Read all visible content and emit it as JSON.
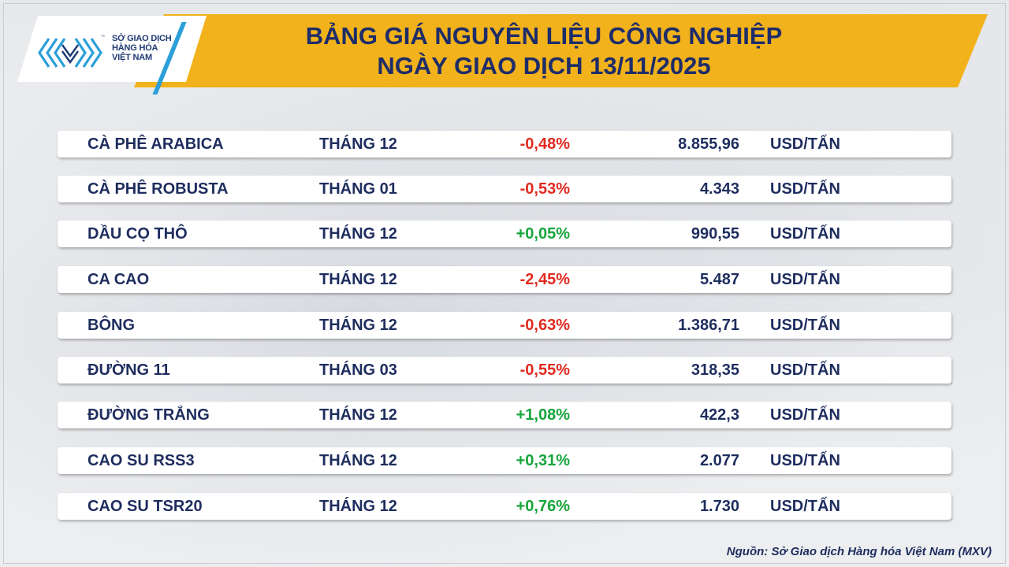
{
  "logo": {
    "line1": "SỞ GIAO DỊCH",
    "line2": "HÀNG HÓA",
    "line3": "VIỆT NAM",
    "trademark": "™",
    "icon": "mxv-chevron-logo-icon",
    "colors": {
      "navy": "#1f3a73",
      "blue": "#2a9fd8"
    }
  },
  "header": {
    "title_line1": "BẢNG GIÁ NGUYÊN LIỆU CÔNG NGHIỆP",
    "title_line2": "NGÀY GIAO DỊCH 13/11/2025",
    "banner_color": "#f2b21b"
  },
  "rows": [
    {
      "name": "CÀ PHÊ ARABICA",
      "month": "THÁNG 12",
      "change": "-0,48%",
      "direction": "down",
      "price": "8.855,96",
      "unit": "USD/TẤN"
    },
    {
      "name": "CÀ PHÊ ROBUSTA",
      "month": "THÁNG 01",
      "change": "-0,53%",
      "direction": "down",
      "price": "4.343",
      "unit": "USD/TẤN"
    },
    {
      "name": "DẦU CỌ THÔ",
      "month": "THÁNG 12",
      "change": "+0,05%",
      "direction": "up",
      "price": "990,55",
      "unit": "USD/TẤN"
    },
    {
      "name": "CA CAO",
      "month": "THÁNG 12",
      "change": "-2,45%",
      "direction": "down",
      "price": "5.487",
      "unit": "USD/TẤN"
    },
    {
      "name": "BÔNG",
      "month": "THÁNG 12",
      "change": "-0,63%",
      "direction": "down",
      "price": "1.386,71",
      "unit": "USD/TẤN"
    },
    {
      "name": "ĐƯỜNG 11",
      "month": "THÁNG 03",
      "change": "-0,55%",
      "direction": "down",
      "price": "318,35",
      "unit": "USD/TẤN"
    },
    {
      "name": "ĐƯỜNG TRẮNG",
      "month": "THÁNG 12",
      "change": "+1,08%",
      "direction": "up",
      "price": "422,3",
      "unit": "USD/TẤN"
    },
    {
      "name": "CAO SU RSS3",
      "month": "THÁNG 12",
      "change": "+0,31%",
      "direction": "up",
      "price": "2.077",
      "unit": "USD/TẤN"
    },
    {
      "name": "CAO SU TSR20",
      "month": "THÁNG 12",
      "change": "+0,76%",
      "direction": "up",
      "price": "1.730",
      "unit": "USD/TẤN"
    }
  ],
  "status_colors": {
    "down": "#e02a20",
    "up": "#17a53b",
    "text": "#1e2d5e"
  },
  "source": "Nguồn: Sở Giao dịch Hàng hóa Việt Nam (MXV)"
}
